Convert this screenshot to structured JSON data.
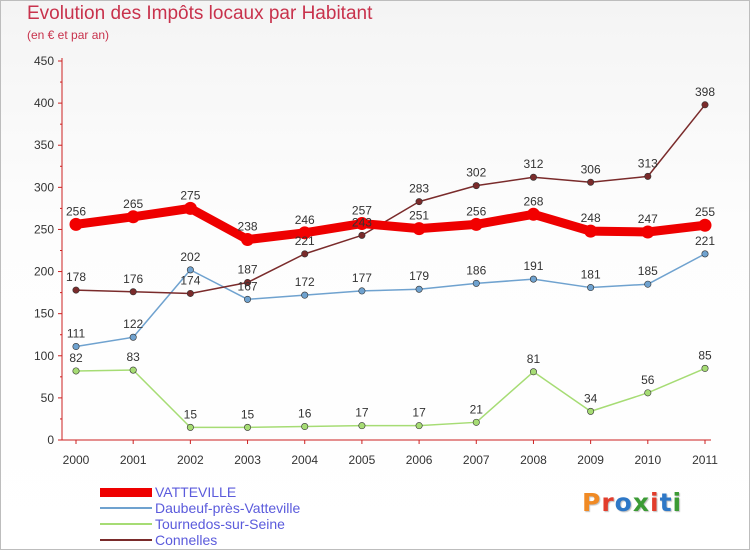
{
  "title": "Evolution des Impôts locaux par Habitant",
  "subtitle": "(en € et par an)",
  "logo": {
    "text": "Proxiti",
    "colors": [
      "#f08a24",
      "#e23d2c",
      "#2e78c7",
      "#3c9b35",
      "#e23d2c",
      "#2e78c7",
      "#3c9b35"
    ]
  },
  "colors": {
    "title": "#c8324c",
    "axis": "#cc2020",
    "tick_text": "#333333",
    "legend_text": "#5b5bdc"
  },
  "chart_data": {
    "type": "line",
    "x": [
      "2000",
      "2001",
      "2002",
      "2003",
      "2004",
      "2005",
      "2006",
      "2007",
      "2008",
      "2009",
      "2010",
      "2011"
    ],
    "ylim": [
      0,
      450
    ],
    "yticks": [
      0,
      50,
      100,
      150,
      200,
      250,
      300,
      350,
      400,
      450
    ],
    "grid": false,
    "legend_position": "bottom-left",
    "series": [
      {
        "name": "VATTEVILLE",
        "color": "#ee0000",
        "emphasis": true,
        "values": [
          256,
          265,
          275,
          238,
          246,
          257,
          251,
          256,
          268,
          248,
          247,
          255
        ]
      },
      {
        "name": "Daubeuf-près-Vatteville",
        "color": "#6fa2cf",
        "emphasis": false,
        "values": [
          111,
          122,
          202,
          167,
          172,
          177,
          179,
          186,
          191,
          181,
          185,
          221
        ]
      },
      {
        "name": "Tournedos-sur-Seine",
        "color": "#a6dc74",
        "emphasis": false,
        "values": [
          82,
          83,
          15,
          15,
          16,
          17,
          17,
          21,
          81,
          34,
          56,
          85
        ]
      },
      {
        "name": "Connelles",
        "color": "#7a2b2b",
        "emphasis": false,
        "values": [
          178,
          176,
          174,
          187,
          221,
          243,
          283,
          302,
          312,
          306,
          313,
          398
        ]
      }
    ]
  }
}
